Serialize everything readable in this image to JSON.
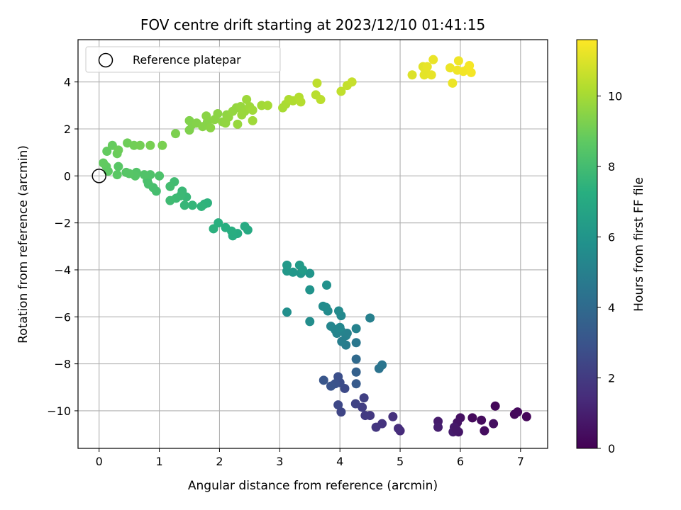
{
  "chart_data": {
    "type": "scatter",
    "title": "FOV centre drift starting at 2023/12/10 01:41:15",
    "xlabel": "Angular distance from reference (arcmin)",
    "ylabel": "Rotation from reference (arcmin)",
    "xlim": [
      -0.35,
      7.45
    ],
    "ylim": [
      -11.6,
      5.8
    ],
    "xticks": [
      0,
      1,
      2,
      3,
      4,
      5,
      6,
      7
    ],
    "yticks": [
      -10,
      -8,
      -6,
      -4,
      -2,
      0,
      2,
      4
    ],
    "grid": true,
    "legend": {
      "position": "upper-left",
      "entries": [
        "Reference platepar"
      ]
    },
    "reference_point": {
      "x": 0,
      "y": 0
    },
    "colorbar": {
      "label": "Hours from first FF file",
      "range": [
        0,
        11.6
      ],
      "ticks": [
        0,
        2,
        4,
        6,
        8,
        10
      ],
      "colormap": "viridis"
    },
    "points": [
      {
        "x": 6.58,
        "y": -9.8,
        "t": 0.2
      },
      {
        "x": 6.2,
        "y": -10.3,
        "t": 0.3
      },
      {
        "x": 6.35,
        "y": -10.4,
        "t": 0.35
      },
      {
        "x": 6.4,
        "y": -10.85,
        "t": 0.4
      },
      {
        "x": 6.55,
        "y": -10.55,
        "t": 0.45
      },
      {
        "x": 6.9,
        "y": -10.15,
        "t": 0.25
      },
      {
        "x": 6.95,
        "y": -10.05,
        "t": 0.3
      },
      {
        "x": 7.1,
        "y": -10.25,
        "t": 0.2
      },
      {
        "x": 6.0,
        "y": -10.3,
        "t": 0.5
      },
      {
        "x": 5.95,
        "y": -10.5,
        "t": 0.6
      },
      {
        "x": 5.9,
        "y": -10.7,
        "t": 0.8
      },
      {
        "x": 5.88,
        "y": -10.9,
        "t": 0.9
      },
      {
        "x": 5.97,
        "y": -10.9,
        "t": 0.7
      },
      {
        "x": 5.93,
        "y": -10.8,
        "t": 0.75
      },
      {
        "x": 5.63,
        "y": -10.45,
        "t": 0.9
      },
      {
        "x": 5.63,
        "y": -10.7,
        "t": 1.0
      },
      {
        "x": 5.0,
        "y": -10.85,
        "t": 1.4
      },
      {
        "x": 4.97,
        "y": -10.75,
        "t": 1.5
      },
      {
        "x": 4.88,
        "y": -10.25,
        "t": 1.6
      },
      {
        "x": 4.7,
        "y": -10.55,
        "t": 1.7
      },
      {
        "x": 4.6,
        "y": -10.7,
        "t": 1.8
      },
      {
        "x": 4.5,
        "y": -10.2,
        "t": 1.9
      },
      {
        "x": 4.42,
        "y": -10.2,
        "t": 2.0
      },
      {
        "x": 4.37,
        "y": -9.85,
        "t": 2.1
      },
      {
        "x": 4.4,
        "y": -9.45,
        "t": 2.2
      },
      {
        "x": 4.26,
        "y": -9.7,
        "t": 2.3
      },
      {
        "x": 4.02,
        "y": -10.05,
        "t": 2.4
      },
      {
        "x": 3.97,
        "y": -9.75,
        "t": 2.5
      },
      {
        "x": 4.08,
        "y": -9.05,
        "t": 2.6
      },
      {
        "x": 4.0,
        "y": -8.8,
        "t": 2.7
      },
      {
        "x": 3.97,
        "y": -8.55,
        "t": 2.8
      },
      {
        "x": 3.92,
        "y": -8.85,
        "t": 2.9
      },
      {
        "x": 3.85,
        "y": -8.95,
        "t": 3.0
      },
      {
        "x": 3.73,
        "y": -8.7,
        "t": 3.1
      },
      {
        "x": 4.27,
        "y": -8.85,
        "t": 3.3
      },
      {
        "x": 4.27,
        "y": -8.35,
        "t": 3.6
      },
      {
        "x": 4.27,
        "y": -7.8,
        "t": 4.0
      },
      {
        "x": 4.65,
        "y": -8.2,
        "t": 4.4
      },
      {
        "x": 4.7,
        "y": -8.05,
        "t": 4.5
      },
      {
        "x": 4.27,
        "y": -7.1,
        "t": 4.6
      },
      {
        "x": 4.1,
        "y": -7.2,
        "t": 4.8
      },
      {
        "x": 4.03,
        "y": -7.05,
        "t": 4.9
      },
      {
        "x": 4.1,
        "y": -6.8,
        "t": 5.0
      },
      {
        "x": 4.12,
        "y": -6.7,
        "t": 5.05
      },
      {
        "x": 4.27,
        "y": -6.5,
        "t": 5.1
      },
      {
        "x": 4.02,
        "y": -6.6,
        "t": 5.15
      },
      {
        "x": 3.95,
        "y": -6.7,
        "t": 5.2
      },
      {
        "x": 3.92,
        "y": -6.55,
        "t": 5.25
      },
      {
        "x": 3.85,
        "y": -6.4,
        "t": 5.3
      },
      {
        "x": 4.0,
        "y": -6.45,
        "t": 5.35
      },
      {
        "x": 4.02,
        "y": -5.95,
        "t": 5.4
      },
      {
        "x": 3.98,
        "y": -5.75,
        "t": 5.45
      },
      {
        "x": 4.5,
        "y": -6.05,
        "t": 5.0
      },
      {
        "x": 3.8,
        "y": -5.75,
        "t": 5.5
      },
      {
        "x": 3.72,
        "y": -5.55,
        "t": 5.55
      },
      {
        "x": 3.77,
        "y": -5.6,
        "t": 5.55
      },
      {
        "x": 3.5,
        "y": -6.2,
        "t": 5.6
      },
      {
        "x": 3.12,
        "y": -5.8,
        "t": 5.7
      },
      {
        "x": 3.78,
        "y": -4.65,
        "t": 5.8
      },
      {
        "x": 3.5,
        "y": -4.85,
        "t": 5.9
      },
      {
        "x": 3.5,
        "y": -4.15,
        "t": 6.0
      },
      {
        "x": 3.35,
        "y": -4.15,
        "t": 6.05
      },
      {
        "x": 3.22,
        "y": -4.1,
        "t": 6.1
      },
      {
        "x": 3.12,
        "y": -4.05,
        "t": 6.15
      },
      {
        "x": 3.12,
        "y": -3.8,
        "t": 6.2
      },
      {
        "x": 3.33,
        "y": -3.8,
        "t": 6.25
      },
      {
        "x": 3.38,
        "y": -4.0,
        "t": 6.3
      },
      {
        "x": 2.47,
        "y": -2.3,
        "t": 7.0
      },
      {
        "x": 2.42,
        "y": -2.15,
        "t": 7.05
      },
      {
        "x": 2.3,
        "y": -2.45,
        "t": 7.1
      },
      {
        "x": 2.22,
        "y": -2.55,
        "t": 7.15
      },
      {
        "x": 2.2,
        "y": -2.35,
        "t": 7.2
      },
      {
        "x": 2.1,
        "y": -2.2,
        "t": 7.25
      },
      {
        "x": 1.98,
        "y": -2.0,
        "t": 7.3
      },
      {
        "x": 1.9,
        "y": -2.25,
        "t": 7.35
      },
      {
        "x": 1.8,
        "y": -1.15,
        "t": 7.4
      },
      {
        "x": 1.75,
        "y": -1.2,
        "t": 7.45
      },
      {
        "x": 1.7,
        "y": -1.3,
        "t": 7.5
      },
      {
        "x": 1.55,
        "y": -1.25,
        "t": 7.6
      },
      {
        "x": 1.42,
        "y": -1.25,
        "t": 7.65
      },
      {
        "x": 1.45,
        "y": -0.9,
        "t": 7.7
      },
      {
        "x": 1.38,
        "y": -0.65,
        "t": 7.75
      },
      {
        "x": 1.35,
        "y": -0.85,
        "t": 7.8
      },
      {
        "x": 1.28,
        "y": -0.95,
        "t": 7.85
      },
      {
        "x": 1.18,
        "y": -1.05,
        "t": 7.9
      },
      {
        "x": 1.25,
        "y": -0.25,
        "t": 7.95
      },
      {
        "x": 1.18,
        "y": -0.45,
        "t": 8.0
      },
      {
        "x": 0.95,
        "y": -0.65,
        "t": 8.05
      },
      {
        "x": 0.9,
        "y": -0.5,
        "t": 8.1
      },
      {
        "x": 0.82,
        "y": -0.35,
        "t": 8.15
      },
      {
        "x": 0.8,
        "y": -0.2,
        "t": 8.2
      },
      {
        "x": 1.0,
        "y": 0.0,
        "t": 8.25
      },
      {
        "x": 0.85,
        "y": 0.05,
        "t": 8.3
      },
      {
        "x": 0.75,
        "y": 0.05,
        "t": 8.35
      },
      {
        "x": 0.62,
        "y": 0.15,
        "t": 8.4
      },
      {
        "x": 0.6,
        "y": 0.0,
        "t": 8.45
      },
      {
        "x": 0.5,
        "y": 0.1,
        "t": 8.5
      },
      {
        "x": 0.45,
        "y": 0.15,
        "t": 8.5
      },
      {
        "x": 0.32,
        "y": 0.4,
        "t": 8.55
      },
      {
        "x": 0.3,
        "y": 0.05,
        "t": 8.6
      },
      {
        "x": 0.15,
        "y": 0.2,
        "t": 8.65
      },
      {
        "x": 0.12,
        "y": 0.4,
        "t": 8.7
      },
      {
        "x": 0.07,
        "y": 0.55,
        "t": 8.75
      },
      {
        "x": 0.13,
        "y": 1.05,
        "t": 8.8
      },
      {
        "x": 0.22,
        "y": 1.3,
        "t": 8.85
      },
      {
        "x": 0.3,
        "y": 0.95,
        "t": 8.9
      },
      {
        "x": 0.32,
        "y": 1.1,
        "t": 8.95
      },
      {
        "x": 0.47,
        "y": 1.4,
        "t": 9.0
      },
      {
        "x": 0.58,
        "y": 1.3,
        "t": 9.05
      },
      {
        "x": 0.68,
        "y": 1.3,
        "t": 9.1
      },
      {
        "x": 0.85,
        "y": 1.3,
        "t": 9.15
      },
      {
        "x": 1.05,
        "y": 1.3,
        "t": 9.2
      },
      {
        "x": 1.27,
        "y": 1.8,
        "t": 9.25
      },
      {
        "x": 1.5,
        "y": 1.95,
        "t": 9.3
      },
      {
        "x": 1.55,
        "y": 2.2,
        "t": 9.35
      },
      {
        "x": 1.5,
        "y": 2.35,
        "t": 9.35
      },
      {
        "x": 1.62,
        "y": 2.25,
        "t": 9.4
      },
      {
        "x": 1.72,
        "y": 2.1,
        "t": 9.45
      },
      {
        "x": 1.8,
        "y": 2.3,
        "t": 9.45
      },
      {
        "x": 1.78,
        "y": 2.55,
        "t": 9.5
      },
      {
        "x": 1.85,
        "y": 2.05,
        "t": 9.5
      },
      {
        "x": 1.92,
        "y": 2.4,
        "t": 9.55
      },
      {
        "x": 1.97,
        "y": 2.65,
        "t": 9.55
      },
      {
        "x": 2.05,
        "y": 2.3,
        "t": 9.6
      },
      {
        "x": 2.12,
        "y": 2.6,
        "t": 9.6
      },
      {
        "x": 2.1,
        "y": 2.25,
        "t": 9.65
      },
      {
        "x": 2.15,
        "y": 2.5,
        "t": 9.65
      },
      {
        "x": 2.22,
        "y": 2.75,
        "t": 9.7
      },
      {
        "x": 2.28,
        "y": 2.9,
        "t": 9.7
      },
      {
        "x": 2.3,
        "y": 2.2,
        "t": 9.75
      },
      {
        "x": 2.35,
        "y": 2.95,
        "t": 9.75
      },
      {
        "x": 2.37,
        "y": 2.6,
        "t": 9.8
      },
      {
        "x": 2.42,
        "y": 2.75,
        "t": 9.8
      },
      {
        "x": 2.45,
        "y": 3.25,
        "t": 9.85
      },
      {
        "x": 2.5,
        "y": 2.95,
        "t": 9.85
      },
      {
        "x": 2.55,
        "y": 2.35,
        "t": 9.9
      },
      {
        "x": 2.55,
        "y": 2.8,
        "t": 9.9
      },
      {
        "x": 2.7,
        "y": 3.0,
        "t": 9.95
      },
      {
        "x": 2.8,
        "y": 3.0,
        "t": 10.0
      },
      {
        "x": 3.05,
        "y": 2.9,
        "t": 10.05
      },
      {
        "x": 3.1,
        "y": 3.05,
        "t": 10.1
      },
      {
        "x": 3.15,
        "y": 3.25,
        "t": 10.15
      },
      {
        "x": 3.22,
        "y": 3.2,
        "t": 10.2
      },
      {
        "x": 3.32,
        "y": 3.35,
        "t": 10.25
      },
      {
        "x": 3.35,
        "y": 3.15,
        "t": 10.3
      },
      {
        "x": 3.6,
        "y": 3.45,
        "t": 10.35
      },
      {
        "x": 3.68,
        "y": 3.25,
        "t": 10.4
      },
      {
        "x": 3.62,
        "y": 3.95,
        "t": 10.45
      },
      {
        "x": 4.02,
        "y": 3.6,
        "t": 10.5
      },
      {
        "x": 4.12,
        "y": 3.85,
        "t": 10.55
      },
      {
        "x": 4.2,
        "y": 4.0,
        "t": 10.6
      },
      {
        "x": 5.2,
        "y": 4.3,
        "t": 11.0
      },
      {
        "x": 5.38,
        "y": 4.65,
        "t": 11.1
      },
      {
        "x": 5.4,
        "y": 4.3,
        "t": 11.15
      },
      {
        "x": 5.42,
        "y": 4.5,
        "t": 11.15
      },
      {
        "x": 5.45,
        "y": 4.65,
        "t": 11.2
      },
      {
        "x": 5.52,
        "y": 4.3,
        "t": 11.2
      },
      {
        "x": 5.55,
        "y": 4.95,
        "t": 11.25
      },
      {
        "x": 5.83,
        "y": 4.6,
        "t": 11.3
      },
      {
        "x": 5.87,
        "y": 3.95,
        "t": 11.3
      },
      {
        "x": 5.95,
        "y": 4.5,
        "t": 11.35
      },
      {
        "x": 5.97,
        "y": 4.9,
        "t": 11.35
      },
      {
        "x": 6.05,
        "y": 4.45,
        "t": 11.4
      },
      {
        "x": 6.12,
        "y": 4.55,
        "t": 11.4
      },
      {
        "x": 6.15,
        "y": 4.7,
        "t": 11.45
      },
      {
        "x": 6.18,
        "y": 4.4,
        "t": 11.45
      }
    ]
  }
}
